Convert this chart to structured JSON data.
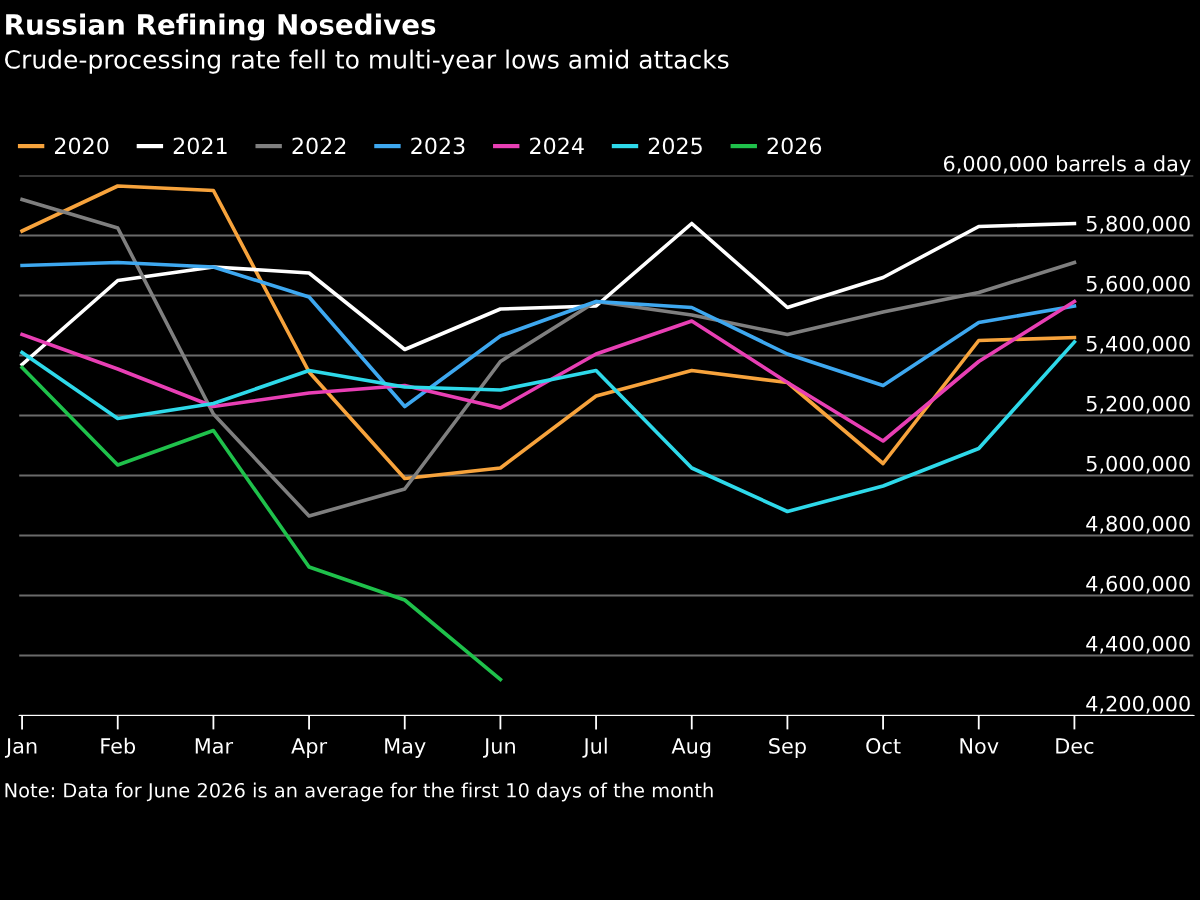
{
  "chart_data": {
    "type": "line",
    "title": "Russian Refining Nosedives",
    "subtitle": "Crude-processing rate fell to multi-year lows amid attacks",
    "categories": [
      "Jan",
      "Feb",
      "Mar",
      "Apr",
      "May",
      "Jun",
      "Jul",
      "Aug",
      "Sep",
      "Oct",
      "Nov",
      "Dec"
    ],
    "series": [
      {
        "name": "2020",
        "color": "#f7a33c",
        "values": [
          5815000,
          5965000,
          5950000,
          5345000,
          4990000,
          5025000,
          5265000,
          5350000,
          5310000,
          5040000,
          5450000,
          5460000
        ]
      },
      {
        "name": "2021",
        "color": "#ffffff",
        "values": [
          5370000,
          5650000,
          5695000,
          5675000,
          5420000,
          5555000,
          5565000,
          5840000,
          5560000,
          5660000,
          5830000,
          5840000
        ]
      },
      {
        "name": "2022",
        "color": "#7f7f7f",
        "values": [
          5920000,
          5825000,
          5205000,
          4865000,
          4955000,
          5380000,
          5580000,
          5535000,
          5470000,
          5545000,
          5610000,
          5710000
        ]
      },
      {
        "name": "2023",
        "color": "#3ea8f0",
        "values": [
          5700000,
          5710000,
          5695000,
          5595000,
          5230000,
          5465000,
          5580000,
          5560000,
          5405000,
          5300000,
          5510000,
          5565000
        ]
      },
      {
        "name": "2024",
        "color": "#e83fb4",
        "values": [
          5470000,
          5355000,
          5230000,
          5275000,
          5300000,
          5225000,
          5405000,
          5515000,
          5310000,
          5115000,
          5380000,
          5580000
        ]
      },
      {
        "name": "2025",
        "color": "#2ed9ea",
        "values": [
          5410000,
          5190000,
          5240000,
          5350000,
          5295000,
          5285000,
          5350000,
          5025000,
          4880000,
          4965000,
          5090000,
          5445000
        ]
      },
      {
        "name": "2026",
        "color": "#1fc14b",
        "values": [
          5360000,
          5035000,
          5150000,
          4695000,
          4585000,
          4320000,
          null,
          null,
          null,
          null,
          null,
          null
        ]
      }
    ],
    "ylim": [
      4200000,
      6000000
    ],
    "yticks": [
      {
        "value": 4200000,
        "label": "4,200,000"
      },
      {
        "value": 4400000,
        "label": "4,400,000"
      },
      {
        "value": 4600000,
        "label": "4,600,000"
      },
      {
        "value": 4800000,
        "label": "4,800,000"
      },
      {
        "value": 5000000,
        "label": "5,000,000"
      },
      {
        "value": 5200000,
        "label": "5,200,000"
      },
      {
        "value": 5400000,
        "label": "5,400,000"
      },
      {
        "value": 5600000,
        "label": "5,600,000"
      },
      {
        "value": 5800000,
        "label": "5,800,000"
      },
      {
        "value": 6000000,
        "label": "6,000,000 barrels a day"
      }
    ],
    "grid": "y",
    "legend": "top left",
    "marker": "none",
    "line_style": "solid",
    "annotations": [
      "Note: Data for June 2026 is an average for the first 10 days of the month"
    ]
  }
}
